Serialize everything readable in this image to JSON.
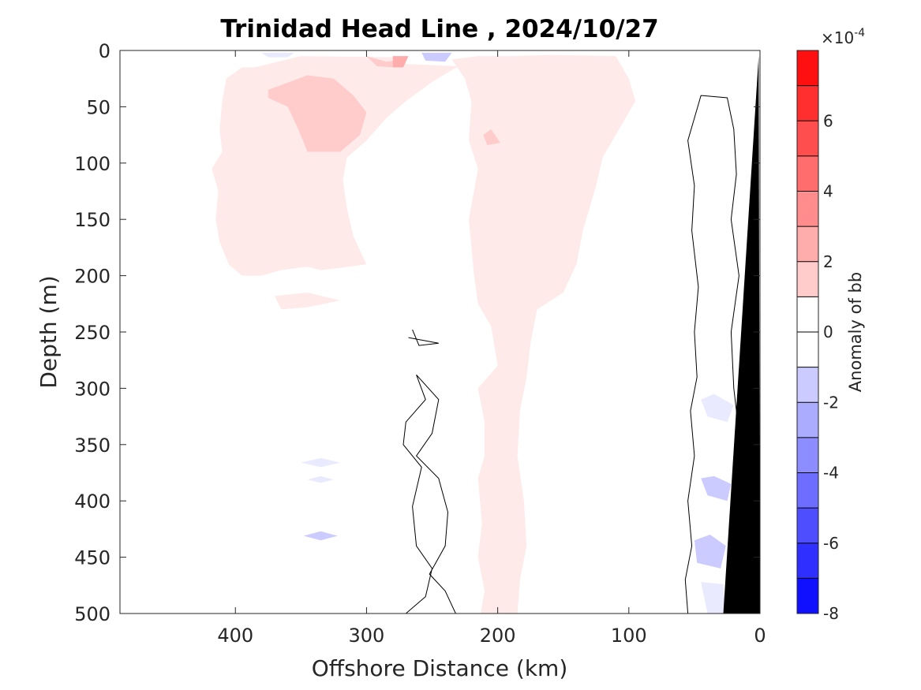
{
  "chart_data": {
    "type": "heatmap",
    "title": "Trinidad Head Line , 2024/10/27",
    "xlabel": "Offshore Distance (km)",
    "ylabel": "Depth (m)",
    "x_reversed": true,
    "y_reversed": true,
    "xlim": [
      0,
      488
    ],
    "ylim": [
      0,
      500
    ],
    "xticks": [
      400,
      300,
      200,
      100,
      0
    ],
    "yticks": [
      0,
      50,
      100,
      150,
      200,
      250,
      300,
      350,
      400,
      450,
      500
    ],
    "colorbar": {
      "label": "Anomaly of bb",
      "exponent_label": "×10",
      "exponent": "-4",
      "range": [
        -8,
        8
      ],
      "ticks": [
        -8,
        -6,
        -4,
        -2,
        0,
        2,
        4,
        6
      ],
      "levels": [
        -8,
        -7,
        -6,
        -5,
        -4,
        -3,
        -2,
        -1,
        0,
        1,
        2,
        3,
        4,
        5,
        6,
        7,
        8
      ],
      "colormap": "blue-white-red"
    },
    "regions": [
      {
        "name": "offshore-positive-patch",
        "level": 1,
        "polygon": [
          [
            385,
            15
          ],
          [
            350,
            5
          ],
          [
            280,
            6
          ],
          [
            270,
            12
          ],
          [
            230,
            14
          ],
          [
            250,
            28
          ],
          [
            270,
            45
          ],
          [
            285,
            60
          ],
          [
            300,
            80
          ],
          [
            315,
            95
          ],
          [
            318,
            115
          ],
          [
            315,
            140
          ],
          [
            310,
            165
          ],
          [
            300,
            190
          ],
          [
            320,
            193
          ],
          [
            335,
            195
          ],
          [
            345,
            192
          ],
          [
            365,
            195
          ],
          [
            380,
            200
          ],
          [
            395,
            200
          ],
          [
            405,
            190
          ],
          [
            412,
            170
          ],
          [
            415,
            150
          ],
          [
            413,
            125
          ],
          [
            418,
            105
          ],
          [
            410,
            90
          ],
          [
            412,
            70
          ],
          [
            410,
            45
          ],
          [
            407,
            25
          ],
          [
            395,
            15
          ]
        ]
      },
      {
        "name": "core-positive-plume",
        "level": 1,
        "polygon": [
          [
            235,
            8
          ],
          [
            225,
            25
          ],
          [
            220,
            45
          ],
          [
            222,
            80
          ],
          [
            215,
            105
          ],
          [
            222,
            150
          ],
          [
            218,
            200
          ],
          [
            215,
            225
          ],
          [
            205,
            245
          ],
          [
            200,
            280
          ],
          [
            215,
            300
          ],
          [
            210,
            330
          ],
          [
            210,
            360
          ],
          [
            215,
            380
          ],
          [
            212,
            420
          ],
          [
            215,
            450
          ],
          [
            210,
            480
          ],
          [
            213,
            500
          ],
          [
            185,
            500
          ],
          [
            183,
            470
          ],
          [
            178,
            440
          ],
          [
            180,
            400
          ],
          [
            185,
            360
          ],
          [
            183,
            320
          ],
          [
            178,
            290
          ],
          [
            175,
            260
          ],
          [
            170,
            230
          ],
          [
            150,
            215
          ],
          [
            140,
            190
          ],
          [
            135,
            160
          ],
          [
            130,
            140
          ],
          [
            125,
            120
          ],
          [
            120,
            95
          ],
          [
            110,
            75
          ],
          [
            95,
            45
          ],
          [
            100,
            25
          ],
          [
            110,
            5
          ],
          [
            160,
            4
          ],
          [
            190,
            5
          ],
          [
            215,
            5
          ]
        ]
      },
      {
        "name": "lens-positive-230m",
        "level": 1,
        "polygon": [
          [
            370,
            218
          ],
          [
            345,
            215
          ],
          [
            320,
            222
          ],
          [
            345,
            228
          ],
          [
            365,
            230
          ]
        ]
      },
      {
        "name": "shallow-positive-hotspot-a",
        "level": 2,
        "polygon": [
          [
            375,
            35
          ],
          [
            345,
            22
          ],
          [
            325,
            25
          ],
          [
            310,
            40
          ],
          [
            300,
            55
          ],
          [
            305,
            75
          ],
          [
            320,
            90
          ],
          [
            345,
            90
          ],
          [
            352,
            70
          ],
          [
            360,
            50
          ],
          [
            375,
            42
          ]
        ]
      },
      {
        "name": "shallow-positive-hotspot-b",
        "level": 2,
        "polygon": [
          [
            300,
            5
          ],
          [
            285,
            10
          ],
          [
            270,
            8
          ],
          [
            280,
            15
          ],
          [
            292,
            14
          ]
        ]
      },
      {
        "name": "shallow-positive-hotspot-c",
        "level": 2,
        "polygon": [
          [
            205,
            70
          ],
          [
            198,
            82
          ],
          [
            208,
            84
          ],
          [
            211,
            75
          ]
        ]
      },
      {
        "name": "shallow-positive-hotspot-d",
        "level": 3,
        "polygon": [
          [
            280,
            5
          ],
          [
            268,
            5
          ],
          [
            272,
            15
          ],
          [
            280,
            15
          ]
        ]
      },
      {
        "name": "surface-negative-a",
        "level": -1,
        "polygon": [
          [
            380,
            2
          ],
          [
            355,
            2
          ],
          [
            360,
            6
          ],
          [
            375,
            6
          ]
        ]
      },
      {
        "name": "surface-negative-b",
        "level": -2,
        "polygon": [
          [
            258,
            2
          ],
          [
            235,
            2
          ],
          [
            240,
            10
          ],
          [
            255,
            9
          ]
        ]
      },
      {
        "name": "nearshore-negative-a",
        "level": -1,
        "polygon": [
          [
            35,
            305
          ],
          [
            45,
            310
          ],
          [
            40,
            325
          ],
          [
            25,
            330
          ],
          [
            20,
            315
          ]
        ]
      },
      {
        "name": "nearshore-negative-b",
        "level": -2,
        "polygon": [
          [
            45,
            380
          ],
          [
            40,
            395
          ],
          [
            25,
            400
          ],
          [
            22,
            385
          ],
          [
            35,
            378
          ]
        ]
      },
      {
        "name": "nearshore-negative-c",
        "level": -2,
        "polygon": [
          [
            50,
            435
          ],
          [
            48,
            455
          ],
          [
            30,
            460
          ],
          [
            26,
            440
          ],
          [
            38,
            430
          ]
        ]
      },
      {
        "name": "nearshore-negative-d",
        "level": -1,
        "polygon": [
          [
            45,
            472
          ],
          [
            40,
            500
          ],
          [
            26,
            500
          ],
          [
            28,
            474
          ]
        ]
      },
      {
        "name": "offshore-negative-lens-365m",
        "level": -1,
        "polygon": [
          [
            350,
            366
          ],
          [
            335,
            362
          ],
          [
            320,
            366
          ],
          [
            335,
            370
          ]
        ]
      },
      {
        "name": "offshore-negative-lens-380m",
        "level": -1,
        "polygon": [
          [
            345,
            381
          ],
          [
            335,
            378
          ],
          [
            325,
            381
          ],
          [
            335,
            384
          ]
        ]
      },
      {
        "name": "offshore-negative-lens-430m",
        "level": -2,
        "polygon": [
          [
            348,
            431
          ],
          [
            335,
            427
          ],
          [
            322,
            431
          ],
          [
            335,
            435
          ]
        ]
      }
    ],
    "zero_contours": [
      {
        "name": "nearshore-zero-contour",
        "points": [
          [
            55,
            500
          ],
          [
            57,
            470
          ],
          [
            52,
            440
          ],
          [
            55,
            400
          ],
          [
            50,
            360
          ],
          [
            53,
            320
          ],
          [
            48,
            290
          ],
          [
            50,
            250
          ],
          [
            47,
            210
          ],
          [
            52,
            160
          ],
          [
            50,
            120
          ],
          [
            55,
            80
          ],
          [
            45,
            40
          ],
          [
            25,
            42
          ],
          [
            20,
            70
          ],
          [
            18,
            110
          ],
          [
            22,
            150
          ],
          [
            16,
            200
          ],
          [
            22,
            250
          ],
          [
            20,
            300
          ],
          [
            16,
            340
          ],
          [
            12,
            355
          ]
        ]
      },
      {
        "name": "deep-zero-contour-320m",
        "points": [
          [
            270,
            500
          ],
          [
            255,
            485
          ],
          [
            250,
            460
          ],
          [
            262,
            440
          ],
          [
            265,
            405
          ],
          [
            258,
            370
          ],
          [
            272,
            350
          ],
          [
            270,
            330
          ],
          [
            255,
            310
          ],
          [
            262,
            288
          ],
          [
            245,
            310
          ],
          [
            250,
            340
          ],
          [
            262,
            360
          ],
          [
            245,
            380
          ],
          [
            238,
            410
          ],
          [
            240,
            440
          ],
          [
            252,
            465
          ],
          [
            240,
            480
          ],
          [
            232,
            500
          ]
        ]
      },
      {
        "name": "lens-zero-contour-260m",
        "points": [
          [
            265,
            248
          ],
          [
            260,
            262
          ],
          [
            245,
            260
          ],
          [
            268,
            255
          ]
        ]
      }
    ],
    "bathymetry": {
      "fill": "#000000",
      "polygon": [
        [
          1,
          5
        ],
        [
          28,
          500
        ],
        [
          0,
          500
        ]
      ]
    }
  }
}
